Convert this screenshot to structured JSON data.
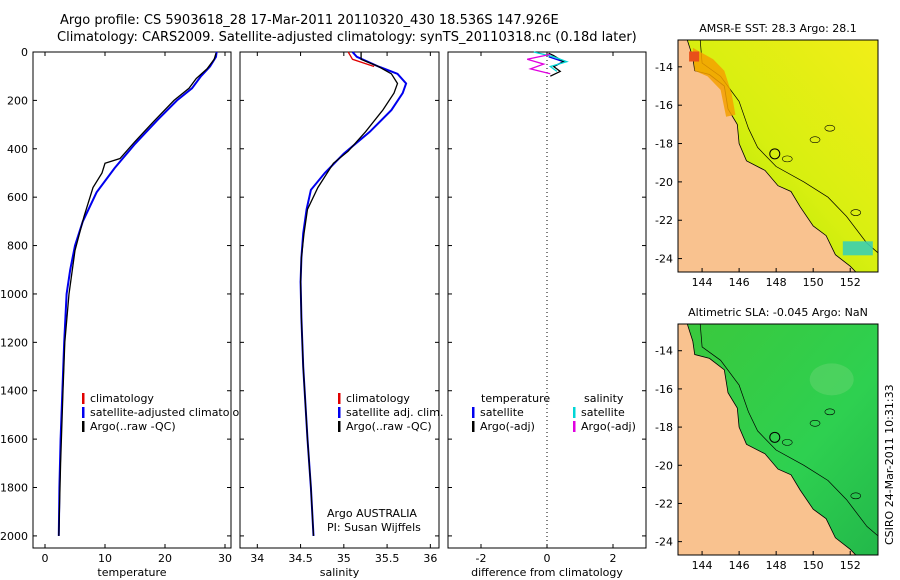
{
  "header": {
    "line1": "Argo profile: CS 5903618_28 17-Mar-2011 20110320_430 18.536S 147.926E",
    "line2": "Climatology: CARS2009. Satellite-adjusted climatology: synTS_20110318.nc (0.18d later)"
  },
  "side_text": "CSIRO 24-Mar-2011 10:31:33",
  "colors": {
    "climatology": "#e00000",
    "satellite": "#0000ee",
    "argo": "#000000",
    "sal_satellite": "#00d6d6",
    "sal_argo": "#e000e0",
    "land": "#f9c28f"
  },
  "chart_data": [
    {
      "type": "line",
      "xlabel": "temperature",
      "ylabel": "",
      "xlim": [
        -2,
        31
      ],
      "ylim": [
        2050,
        0
      ],
      "xticks": [
        0,
        10,
        20,
        30
      ],
      "yticks": [
        0,
        200,
        400,
        600,
        800,
        1000,
        1200,
        1400,
        1600,
        1800,
        2000
      ],
      "legend": [
        "climatology",
        "satellite-adjusted climatology",
        "Argo(..raw -QC)"
      ],
      "series": [
        {
          "name": "climatology",
          "color": "#e00000",
          "x": [
            28.6,
            28.5,
            27.5,
            26,
            24.5,
            22,
            18.8,
            15,
            11.6,
            8.6,
            6.3,
            5,
            4.2,
            3.6,
            3.2,
            2.9,
            2.6,
            2.4,
            2.3
          ],
          "y": [
            0,
            20,
            60,
            100,
            150,
            200,
            280,
            380,
            480,
            580,
            700,
            800,
            900,
            1000,
            1200,
            1400,
            1600,
            1800,
            2000
          ]
        },
        {
          "name": "satellite-adjusted climatology",
          "color": "#0000ee",
          "x": [
            28.6,
            28.5,
            27.5,
            26,
            24.5,
            22,
            18.8,
            15,
            11.6,
            8.6,
            6.3,
            5,
            4.2,
            3.6,
            3.2,
            2.9,
            2.6,
            2.4,
            2.3
          ],
          "y": [
            0,
            20,
            60,
            100,
            150,
            200,
            280,
            380,
            480,
            580,
            700,
            800,
            900,
            1000,
            1200,
            1400,
            1600,
            1800,
            2000
          ]
        },
        {
          "name": "Argo(..raw -QC)",
          "color": "#000000",
          "x": [
            28.5,
            28.2,
            27,
            25.2,
            24,
            21.5,
            18,
            15,
            12.5,
            10,
            9.5,
            8,
            6.5,
            5,
            4,
            3.3,
            3,
            2.6,
            2.3
          ],
          "y": [
            5,
            30,
            70,
            110,
            150,
            200,
            290,
            370,
            440,
            460,
            500,
            560,
            680,
            820,
            1000,
            1200,
            1400,
            1700,
            2000
          ]
        }
      ]
    },
    {
      "type": "line",
      "xlabel": "salinity",
      "xlim": [
        33.8,
        36.1
      ],
      "ylim": [
        2050,
        0
      ],
      "xticks": [
        34,
        34.5,
        35,
        35.5,
        36
      ],
      "legend": [
        "climatology",
        "satellite adj. clim.",
        "Argo(..raw -QC)"
      ],
      "annotation": [
        "Argo AUSTRALIA",
        "PI: Susan Wijffels"
      ],
      "series": [
        {
          "name": "climatology",
          "color": "#e00000",
          "x": [
            35.05,
            35.1,
            35.35
          ],
          "y": [
            0,
            30,
            60
          ]
        },
        {
          "name": "satellite adj. clim.",
          "color": "#0000ee",
          "x": [
            35.1,
            35.15,
            35.4,
            35.62,
            35.72,
            35.68,
            35.55,
            35.3,
            35,
            34.78,
            34.62,
            34.57,
            34.53,
            34.51,
            34.5,
            34.51,
            34.53,
            34.58,
            34.62,
            34.65
          ],
          "y": [
            0,
            20,
            60,
            90,
            130,
            170,
            240,
            330,
            420,
            500,
            570,
            650,
            750,
            850,
            950,
            1100,
            1300,
            1600,
            1800,
            2000
          ]
        },
        {
          "name": "Argo(..raw -QC)",
          "color": "#000000",
          "x": [
            35.2,
            35.2,
            35.4,
            35.55,
            35.62,
            35.58,
            35.45,
            35.25,
            35.05,
            34.88,
            34.7,
            34.58,
            34.54,
            34.51,
            34.5,
            34.51,
            34.53,
            34.58,
            34.62,
            34.65
          ],
          "y": [
            0,
            30,
            60,
            90,
            130,
            170,
            240,
            330,
            410,
            460,
            560,
            650,
            750,
            850,
            950,
            1100,
            1300,
            1600,
            1800,
            2000
          ]
        }
      ]
    },
    {
      "type": "line",
      "xlabel": "difference from climatology",
      "xlim": [
        -3,
        3
      ],
      "ylim": [
        2050,
        0
      ],
      "xticks": [
        -2,
        0,
        2
      ],
      "legend_headers": [
        "temperature",
        "salinity"
      ],
      "legend": [
        "satellite",
        "Argo(-adj)",
        "satellite",
        "Argo(-adj)"
      ],
      "series": [
        {
          "name": "temperature satellite",
          "color": "#0000ee",
          "x": [
            0.05,
            0.5,
            0.2
          ],
          "y": [
            20,
            40,
            60
          ]
        },
        {
          "name": "temperature Argo(-adj)",
          "color": "#000000",
          "x": [
            0.05,
            0.2,
            0.5,
            0.2,
            0.4,
            0.1
          ],
          "y": [
            5,
            15,
            40,
            60,
            80,
            100
          ]
        },
        {
          "name": "salinity satellite",
          "color": "#00d6d6",
          "x": [
            -0.4,
            0.2,
            0.6,
            0.1,
            0.3
          ],
          "y": [
            0,
            20,
            40,
            60,
            80
          ]
        },
        {
          "name": "salinity Argo(-adj)",
          "color": "#e000e0",
          "x": [
            0.1,
            -0.6,
            -0.1,
            -0.5,
            0.1
          ],
          "y": [
            10,
            30,
            50,
            70,
            90
          ]
        }
      ]
    },
    {
      "type": "heatmap",
      "title": "AMSR-E SST: 28.3 Argo: 28.1",
      "xlim": [
        142.7,
        153.5
      ],
      "ylim": [
        -24.7,
        -12.6
      ],
      "xticks": [
        144,
        146,
        148,
        150,
        152
      ],
      "yticks": [
        -14,
        -16,
        -18,
        -20,
        -22,
        -24
      ]
    },
    {
      "type": "heatmap",
      "title": "Altimetric SLA: -0.045 Argo: NaN",
      "xlim": [
        142.7,
        153.5
      ],
      "ylim": [
        -24.7,
        -12.6
      ],
      "xticks": [
        144,
        146,
        148,
        150,
        152
      ],
      "yticks": [
        -14,
        -16,
        -18,
        -20,
        -22,
        -24
      ]
    }
  ]
}
